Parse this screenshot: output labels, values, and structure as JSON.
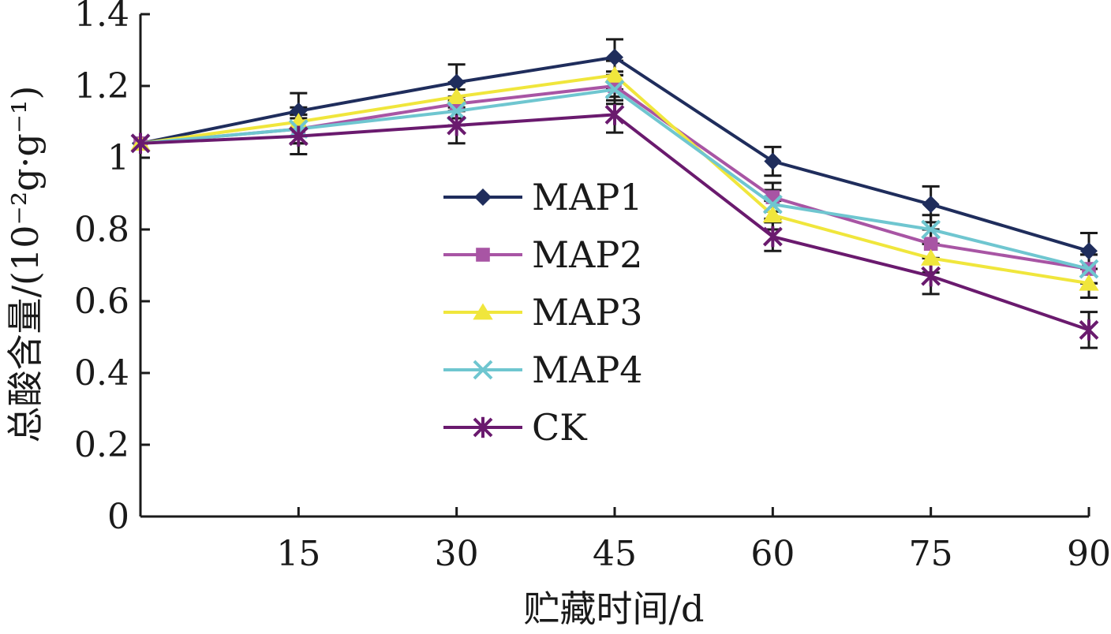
{
  "chart_data": {
    "type": "line",
    "xlabel": "贮藏时间/d",
    "ylabel": "总酸含量/(10⁻²g·g⁻¹)",
    "x": [
      0,
      15,
      30,
      45,
      60,
      75,
      90
    ],
    "x_tick_labels": [
      "",
      "15",
      "30",
      "45",
      "60",
      "75",
      "90"
    ],
    "ylim": [
      0,
      1.4
    ],
    "y_ticks": [
      0,
      0.2,
      0.4,
      0.6,
      0.8,
      1,
      1.2,
      1.4
    ],
    "y_tick_labels": [
      "0",
      "0.2",
      "0.4",
      "0.6",
      "0.8",
      "1",
      "1.2",
      "1.4"
    ],
    "grid": false,
    "legend_position": "center-left",
    "series": [
      {
        "name": "MAP1",
        "color": "#1f2d5c",
        "marker": "diamond",
        "values": [
          1.04,
          1.13,
          1.21,
          1.28,
          0.99,
          0.87,
          0.74
        ],
        "error": [
          0,
          0.05,
          0.05,
          0.05,
          0.04,
          0.05,
          0.05
        ]
      },
      {
        "name": "MAP2",
        "color": "#a855a4",
        "marker": "square",
        "values": [
          1.04,
          1.08,
          1.15,
          1.2,
          0.89,
          0.76,
          0.69
        ],
        "error": [
          0,
          0.04,
          0.04,
          0.04,
          0.04,
          0.04,
          0.04
        ]
      },
      {
        "name": "MAP3",
        "color": "#f0e63c",
        "marker": "triangle",
        "values": [
          1.04,
          1.1,
          1.17,
          1.23,
          0.84,
          0.72,
          0.65
        ],
        "error": [
          0,
          0.04,
          0.04,
          0.04,
          0.04,
          0.04,
          0.04
        ]
      },
      {
        "name": "MAP4",
        "color": "#6fc6d0",
        "marker": "x",
        "values": [
          1.04,
          1.08,
          1.13,
          1.19,
          0.87,
          0.8,
          0.69
        ],
        "error": [
          0,
          0.04,
          0.04,
          0.04,
          0.04,
          0.04,
          0.04
        ]
      },
      {
        "name": "CK",
        "color": "#6a1a6e",
        "marker": "asterisk",
        "values": [
          1.04,
          1.06,
          1.09,
          1.12,
          0.78,
          0.67,
          0.52
        ],
        "error": [
          0,
          0.05,
          0.05,
          0.05,
          0.04,
          0.05,
          0.05
        ]
      }
    ]
  }
}
